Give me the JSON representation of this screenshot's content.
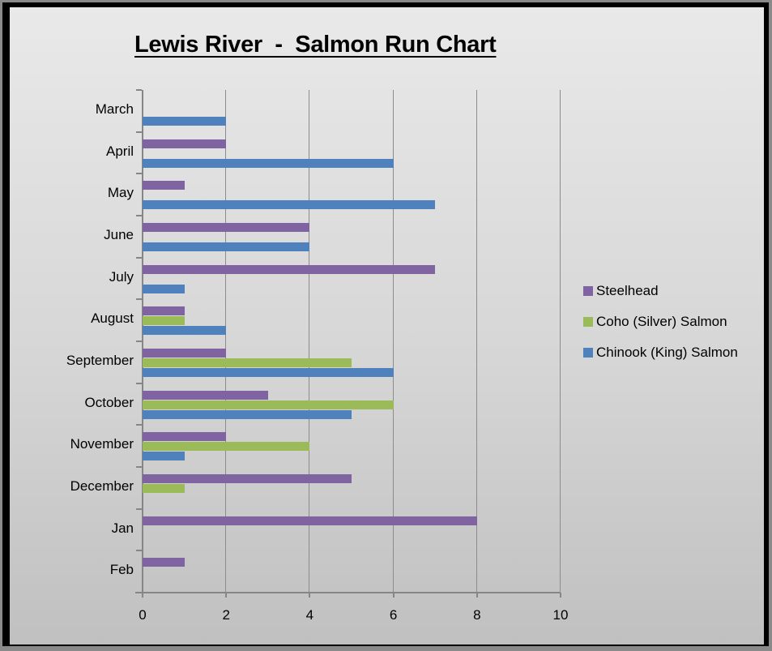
{
  "chart_data": {
    "type": "bar",
    "orientation": "horizontal",
    "title": "Lewis River  -  Salmon Run Chart",
    "xlabel": "",
    "ylabel": "",
    "xlim": [
      0,
      10
    ],
    "x_ticks": [
      "0",
      "2",
      "4",
      "6",
      "8",
      "10"
    ],
    "grid": true,
    "legend_position": "right",
    "categories": [
      "March",
      "April",
      "May",
      "June",
      "July",
      "August",
      "September",
      "October",
      "November",
      "December",
      "Jan",
      "Feb"
    ],
    "series": [
      {
        "name": "Steelhead",
        "color": "#8064a2",
        "values": [
          0,
          2,
          1,
          4,
          7,
          1,
          2,
          3,
          2,
          5,
          8,
          1
        ]
      },
      {
        "name": "Coho (Silver) Salmon",
        "color": "#9bbb59",
        "values": [
          0,
          0,
          0,
          0,
          0,
          1,
          5,
          6,
          4,
          1,
          0,
          0
        ]
      },
      {
        "name": "Chinook (King) Salmon",
        "color": "#4f81bd",
        "values": [
          2,
          6,
          7,
          4,
          1,
          2,
          6,
          5,
          1,
          0,
          0,
          0
        ]
      }
    ]
  }
}
